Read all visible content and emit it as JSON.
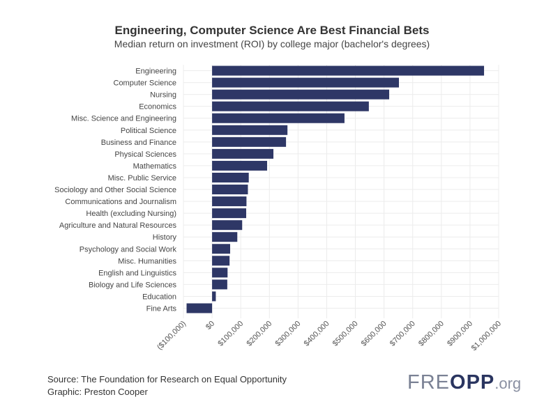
{
  "chart_data": {
    "type": "bar",
    "orientation": "horizontal",
    "title": "Engineering, Computer Science Are Best Financial Bets",
    "subtitle": "Median return on investment (ROI) by college major (bachelor's degrees)",
    "xlabel": "",
    "ylabel": "",
    "xlim": [
      -100000,
      1000000
    ],
    "x_ticks": [
      -100000,
      0,
      100000,
      200000,
      300000,
      400000,
      500000,
      600000,
      700000,
      800000,
      900000,
      1000000
    ],
    "x_tick_labels": [
      "($100,000)",
      "$0",
      "$100,000",
      "$200,000",
      "$300,000",
      "$400,000",
      "$500,000",
      "$600,000",
      "$700,000",
      "$800,000",
      "$900,000",
      "$1,000,000"
    ],
    "categories": [
      "Engineering",
      "Computer Science",
      "Nursing",
      "Economics",
      "Misc. Science and Engineering",
      "Political Science",
      "Business and Finance",
      "Physical Sciences",
      "Mathematics",
      "Misc. Public Service",
      "Sociology and Other Social Science",
      "Communications and Journalism",
      "Health (excluding Nursing)",
      "Agriculture and Natural Resources",
      "History",
      "Psychology and Social Work",
      "Misc. Humanities",
      "English and Linguistics",
      "Biology and Life Sciences",
      "Education",
      "Fine Arts"
    ],
    "values": [
      949000,
      652000,
      618000,
      547000,
      462000,
      263000,
      258000,
      214000,
      192000,
      128000,
      125000,
      120000,
      119000,
      105000,
      88000,
      63000,
      61000,
      54000,
      53000,
      13000,
      -89000
    ],
    "grid": true,
    "bar_color": "#2e3766"
  },
  "footer": {
    "source": "Source: The Foundation for Research on Equal Opportunity",
    "graphic": "Graphic: Preston Cooper"
  },
  "logo": {
    "text": "FREOPP.org"
  }
}
